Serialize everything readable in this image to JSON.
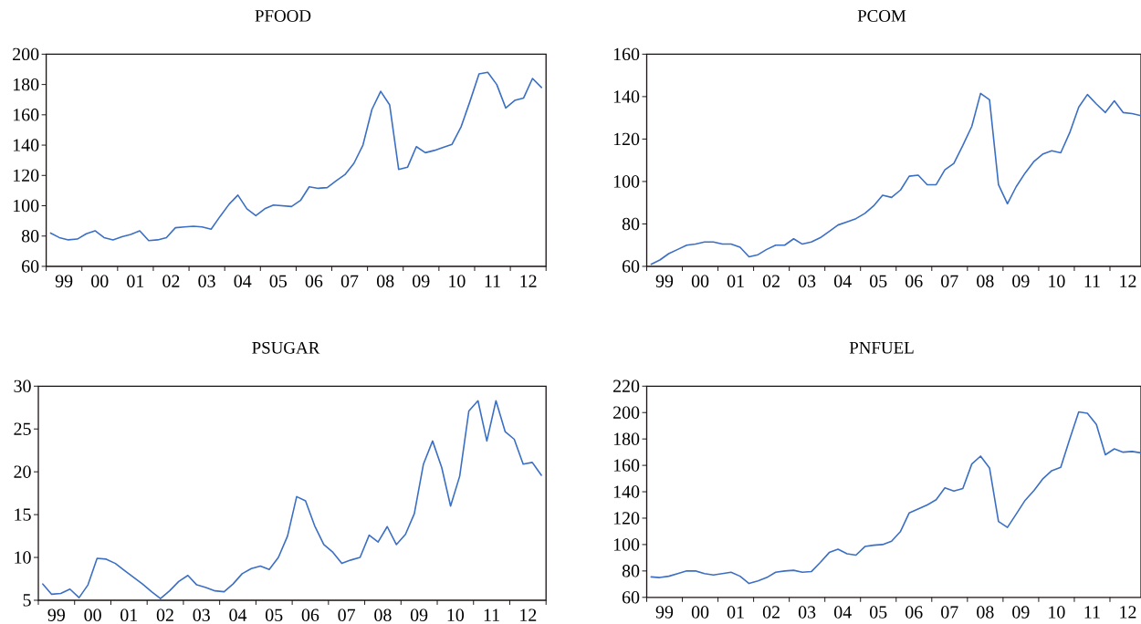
{
  "chart_data": [
    {
      "type": "line",
      "title": "PFOOD",
      "color": "#3b6fc4",
      "x": [
        "1999-02-15",
        "1999-05-15",
        "1999-08-15",
        "1999-11-15",
        "2000-02-15",
        "2000-05-15",
        "2000-08-15",
        "2000-11-15",
        "2001-02-15",
        "2001-05-15",
        "2001-08-15",
        "2001-11-15",
        "2002-02-15",
        "2002-05-15",
        "2002-08-15",
        "2002-11-15",
        "2003-02-15",
        "2003-05-15",
        "2003-08-15",
        "2003-11-15",
        "2004-02-15",
        "2004-05-15",
        "2004-08-15",
        "2004-11-15",
        "2005-02-15",
        "2005-05-15",
        "2005-08-15",
        "2005-11-15",
        "2006-02-15",
        "2006-05-15",
        "2006-08-15",
        "2006-11-15",
        "2007-02-15",
        "2007-05-15",
        "2007-08-15",
        "2007-11-15",
        "2008-02-15",
        "2008-05-15",
        "2008-08-15",
        "2008-11-15",
        "2009-02-15",
        "2009-05-15",
        "2009-08-15",
        "2009-11-15",
        "2010-02-15",
        "2010-05-15",
        "2010-08-15",
        "2010-11-15",
        "2011-02-15",
        "2011-05-15",
        "2011-08-15",
        "2011-11-15",
        "2012-02-15",
        "2012-05-15",
        "2012-08-15",
        "2012-11-15"
      ],
      "values": [
        82,
        79,
        77.5,
        78,
        81.5,
        83.5,
        79,
        77.5,
        79.5,
        81,
        83.5,
        77,
        77.5,
        79,
        85.5,
        86,
        86.5,
        86,
        84.5,
        93,
        101,
        107,
        98,
        93.5,
        98,
        100.5,
        100,
        99.5,
        103.5,
        112.5,
        111.5,
        112,
        116.5,
        120.5,
        128,
        140,
        163.5,
        175.5,
        166.5,
        124,
        125.5,
        139,
        135,
        136.5,
        138.5,
        140.5,
        152,
        169,
        187,
        188,
        180,
        164.5,
        169.5,
        171,
        184,
        178
      ],
      "xlim": [
        "1999-01-01",
        "2013-01-01"
      ],
      "ylim": [
        60,
        200
      ],
      "xticks": [
        {
          "value": "1999-01-01",
          "label": null
        },
        {
          "value": "1999-07-02",
          "label": "99"
        },
        {
          "value": "2000-01-01",
          "label": null
        },
        {
          "value": "2000-07-02",
          "label": "00"
        },
        {
          "value": "2001-01-01",
          "label": null
        },
        {
          "value": "2001-07-02",
          "label": "01"
        },
        {
          "value": "2002-01-01",
          "label": null
        },
        {
          "value": "2002-07-02",
          "label": "02"
        },
        {
          "value": "2003-01-01",
          "label": null
        },
        {
          "value": "2003-07-02",
          "label": "03"
        },
        {
          "value": "2004-01-01",
          "label": null
        },
        {
          "value": "2004-07-02",
          "label": "04"
        },
        {
          "value": "2005-01-01",
          "label": null
        },
        {
          "value": "2005-07-02",
          "label": "05"
        },
        {
          "value": "2006-01-01",
          "label": null
        },
        {
          "value": "2006-07-02",
          "label": "06"
        },
        {
          "value": "2007-01-01",
          "label": null
        },
        {
          "value": "2007-07-02",
          "label": "07"
        },
        {
          "value": "2008-01-01",
          "label": null
        },
        {
          "value": "2008-07-02",
          "label": "08"
        },
        {
          "value": "2009-01-01",
          "label": null
        },
        {
          "value": "2009-07-02",
          "label": "09"
        },
        {
          "value": "2010-01-01",
          "label": null
        },
        {
          "value": "2010-07-02",
          "label": "10"
        },
        {
          "value": "2011-01-01",
          "label": null
        },
        {
          "value": "2011-07-02",
          "label": "11"
        },
        {
          "value": "2012-01-01",
          "label": null
        },
        {
          "value": "2012-07-02",
          "label": "12"
        },
        {
          "value": "2013-01-01",
          "label": null
        }
      ],
      "yticks": [
        60,
        80,
        100,
        120,
        140,
        160,
        180,
        200
      ]
    },
    {
      "type": "line",
      "title": "PCOM",
      "color": "#3b6fc4",
      "x": [
        "1999-02-15",
        "1999-05-15",
        "1999-08-15",
        "1999-11-15",
        "2000-02-15",
        "2000-05-15",
        "2000-08-15",
        "2000-11-15",
        "2001-02-15",
        "2001-05-15",
        "2001-08-15",
        "2001-11-15",
        "2002-02-15",
        "2002-05-15",
        "2002-08-15",
        "2002-11-15",
        "2003-02-15",
        "2003-05-15",
        "2003-08-15",
        "2003-11-15",
        "2004-02-15",
        "2004-05-15",
        "2004-08-15",
        "2004-11-15",
        "2005-02-15",
        "2005-05-15",
        "2005-08-15",
        "2005-11-15",
        "2006-02-15",
        "2006-05-15",
        "2006-08-15",
        "2006-11-15",
        "2007-02-15",
        "2007-05-15",
        "2007-08-15",
        "2007-11-15",
        "2008-02-15",
        "2008-05-15",
        "2008-08-15",
        "2008-11-15",
        "2009-02-15",
        "2009-05-15",
        "2009-08-15",
        "2009-11-15",
        "2010-02-15",
        "2010-05-15",
        "2010-08-15",
        "2010-11-15",
        "2011-02-15",
        "2011-05-15",
        "2011-08-15",
        "2011-11-15",
        "2012-02-15",
        "2012-05-15",
        "2012-08-15",
        "2012-11-15"
      ],
      "values": [
        61,
        63,
        66,
        68,
        70,
        70.5,
        71.5,
        71.5,
        70.5,
        70.5,
        69,
        64.5,
        65.5,
        68,
        70,
        70,
        73,
        70.5,
        71.5,
        73.5,
        76.5,
        79.5,
        81,
        82.5,
        85,
        88.5,
        93.5,
        92.5,
        96,
        102.5,
        103,
        98.5,
        98.5,
        105.5,
        108.5,
        117,
        126,
        141.5,
        138.5,
        98.5,
        89.5,
        97.5,
        104,
        109.5,
        113,
        114.5,
        113.5,
        123,
        135,
        141,
        136.5,
        132.5,
        138,
        132.5,
        132,
        131
      ],
      "xlim": [
        "1999-01-01",
        "2012-11-15"
      ],
      "ylim": [
        60,
        160
      ],
      "xticks": [
        {
          "value": "1999-01-01",
          "label": null
        },
        {
          "value": "1999-07-02",
          "label": "99"
        },
        {
          "value": "2000-01-01",
          "label": null
        },
        {
          "value": "2000-07-02",
          "label": "00"
        },
        {
          "value": "2001-01-01",
          "label": null
        },
        {
          "value": "2001-07-02",
          "label": "01"
        },
        {
          "value": "2002-01-01",
          "label": null
        },
        {
          "value": "2002-07-02",
          "label": "02"
        },
        {
          "value": "2003-01-01",
          "label": null
        },
        {
          "value": "2003-07-02",
          "label": "03"
        },
        {
          "value": "2004-01-01",
          "label": null
        },
        {
          "value": "2004-07-02",
          "label": "04"
        },
        {
          "value": "2005-01-01",
          "label": null
        },
        {
          "value": "2005-07-02",
          "label": "05"
        },
        {
          "value": "2006-01-01",
          "label": null
        },
        {
          "value": "2006-07-02",
          "label": "06"
        },
        {
          "value": "2007-01-01",
          "label": null
        },
        {
          "value": "2007-07-02",
          "label": "07"
        },
        {
          "value": "2008-01-01",
          "label": null
        },
        {
          "value": "2008-07-02",
          "label": "08"
        },
        {
          "value": "2009-01-01",
          "label": null
        },
        {
          "value": "2009-07-02",
          "label": "09"
        },
        {
          "value": "2010-01-01",
          "label": null
        },
        {
          "value": "2010-07-02",
          "label": "10"
        },
        {
          "value": "2011-01-01",
          "label": null
        },
        {
          "value": "2011-07-02",
          "label": "11"
        },
        {
          "value": "2012-01-01",
          "label": null
        },
        {
          "value": "2012-07-02",
          "label": "12"
        }
      ],
      "yticks": [
        60,
        80,
        100,
        120,
        140,
        160
      ]
    },
    {
      "type": "line",
      "title": "PSUGAR",
      "color": "#3b6fc4",
      "x": [
        "1999-02-15",
        "1999-05-15",
        "1999-08-15",
        "1999-11-15",
        "2000-02-15",
        "2000-05-15",
        "2000-08-15",
        "2000-11-15",
        "2001-02-15",
        "2001-05-15",
        "2001-08-15",
        "2001-11-15",
        "2002-02-15",
        "2002-05-15",
        "2002-08-15",
        "2002-11-15",
        "2003-02-15",
        "2003-05-15",
        "2003-08-15",
        "2003-11-15",
        "2004-02-15",
        "2004-05-15",
        "2004-08-15",
        "2004-11-15",
        "2005-02-15",
        "2005-05-15",
        "2005-08-15",
        "2005-11-15",
        "2006-02-15",
        "2006-05-15",
        "2006-08-15",
        "2006-11-15",
        "2007-02-15",
        "2007-05-15",
        "2007-08-15",
        "2007-11-15",
        "2008-02-15",
        "2008-05-15",
        "2008-08-15",
        "2008-11-15",
        "2009-02-15",
        "2009-05-15",
        "2009-08-15",
        "2009-11-15",
        "2010-02-15",
        "2010-05-15",
        "2010-08-15",
        "2010-11-15",
        "2011-02-15",
        "2011-05-15",
        "2011-08-15",
        "2011-11-15",
        "2012-02-15",
        "2012-05-15",
        "2012-08-15",
        "2012-11-15"
      ],
      "values": [
        6.9,
        5.7,
        5.8,
        6.3,
        5.3,
        6.8,
        9.9,
        9.8,
        9.3,
        8.5,
        7.7,
        6.9,
        6.0,
        5.2,
        6.1,
        7.2,
        7.9,
        6.8,
        6.5,
        6.1,
        6.0,
        6.9,
        8.1,
        8.7,
        9.0,
        8.6,
        10,
        12.5,
        17.1,
        16.6,
        13.7,
        11.5,
        10.6,
        9.3,
        9.7,
        10,
        12.6,
        11.8,
        13.6,
        11.5,
        12.7,
        15.1,
        20.9,
        23.6,
        20.5,
        16,
        19.5,
        27.1,
        28.3,
        23.6,
        28.3,
        24.7,
        23.8,
        20.9,
        21.1,
        19.6
      ],
      "xlim": [
        "1999-01-01",
        "2013-01-01"
      ],
      "ylim": [
        5,
        30
      ],
      "xticks": [
        {
          "value": "1999-01-01",
          "label": null
        },
        {
          "value": "1999-07-02",
          "label": "99"
        },
        {
          "value": "2000-01-01",
          "label": null
        },
        {
          "value": "2000-07-02",
          "label": "00"
        },
        {
          "value": "2001-01-01",
          "label": null
        },
        {
          "value": "2001-07-02",
          "label": "01"
        },
        {
          "value": "2002-01-01",
          "label": null
        },
        {
          "value": "2002-07-02",
          "label": "02"
        },
        {
          "value": "2003-01-01",
          "label": null
        },
        {
          "value": "2003-07-02",
          "label": "03"
        },
        {
          "value": "2004-01-01",
          "label": null
        },
        {
          "value": "2004-07-02",
          "label": "04"
        },
        {
          "value": "2005-01-01",
          "label": null
        },
        {
          "value": "2005-07-02",
          "label": "05"
        },
        {
          "value": "2006-01-01",
          "label": null
        },
        {
          "value": "2006-07-02",
          "label": "06"
        },
        {
          "value": "2007-01-01",
          "label": null
        },
        {
          "value": "2007-07-02",
          "label": "07"
        },
        {
          "value": "2008-01-01",
          "label": null
        },
        {
          "value": "2008-07-02",
          "label": "08"
        },
        {
          "value": "2009-01-01",
          "label": null
        },
        {
          "value": "2009-07-02",
          "label": "09"
        },
        {
          "value": "2010-01-01",
          "label": null
        },
        {
          "value": "2010-07-02",
          "label": "10"
        },
        {
          "value": "2011-01-01",
          "label": null
        },
        {
          "value": "2011-07-02",
          "label": "11"
        },
        {
          "value": "2012-01-01",
          "label": null
        },
        {
          "value": "2012-07-02",
          "label": "12"
        },
        {
          "value": "2013-01-01",
          "label": null
        }
      ],
      "yticks": [
        5,
        10,
        15,
        20,
        25,
        30
      ]
    },
    {
      "type": "line",
      "title": "PNFUEL",
      "color": "#3b6fc4",
      "x": [
        "1999-02-15",
        "1999-05-15",
        "1999-08-15",
        "1999-11-15",
        "2000-02-15",
        "2000-05-15",
        "2000-08-15",
        "2000-11-15",
        "2001-02-15",
        "2001-05-15",
        "2001-08-15",
        "2001-11-15",
        "2002-02-15",
        "2002-05-15",
        "2002-08-15",
        "2002-11-15",
        "2003-02-15",
        "2003-05-15",
        "2003-08-15",
        "2003-11-15",
        "2004-02-15",
        "2004-05-15",
        "2004-08-15",
        "2004-11-15",
        "2005-02-15",
        "2005-05-15",
        "2005-08-15",
        "2005-11-15",
        "2006-02-15",
        "2006-05-15",
        "2006-08-15",
        "2006-11-15",
        "2007-02-15",
        "2007-05-15",
        "2007-08-15",
        "2007-11-15",
        "2008-02-15",
        "2008-05-15",
        "2008-08-15",
        "2008-11-15",
        "2009-02-15",
        "2009-05-15",
        "2009-08-15",
        "2009-11-15",
        "2010-02-15",
        "2010-05-15",
        "2010-08-15",
        "2010-11-15",
        "2011-02-15",
        "2011-05-15",
        "2011-08-15",
        "2011-11-15",
        "2012-02-15",
        "2012-05-15",
        "2012-08-15",
        "2012-11-15"
      ],
      "values": [
        75.5,
        75,
        76,
        78,
        80,
        80,
        78,
        77,
        78,
        79,
        76,
        70.5,
        72.5,
        75,
        79,
        80,
        80.5,
        79,
        79.5,
        86.5,
        94,
        96.5,
        93,
        92,
        98.5,
        99.5,
        100,
        102.5,
        110,
        124,
        127,
        130,
        134,
        143,
        140.5,
        142.5,
        161,
        167,
        158,
        117.5,
        113,
        123,
        133.5,
        141,
        150,
        156,
        158.5,
        180,
        200.5,
        199.5,
        191,
        168,
        172.5,
        170,
        170.5,
        169.5
      ],
      "xlim": [
        "1999-01-01",
        "2012-11-15"
      ],
      "ylim": [
        60,
        220
      ],
      "xticks": [
        {
          "value": "1999-01-01",
          "label": null
        },
        {
          "value": "1999-07-02",
          "label": "99"
        },
        {
          "value": "2000-01-01",
          "label": null
        },
        {
          "value": "2000-07-02",
          "label": "00"
        },
        {
          "value": "2001-01-01",
          "label": null
        },
        {
          "value": "2001-07-02",
          "label": "01"
        },
        {
          "value": "2002-01-01",
          "label": null
        },
        {
          "value": "2002-07-02",
          "label": "02"
        },
        {
          "value": "2003-01-01",
          "label": null
        },
        {
          "value": "2003-07-02",
          "label": "03"
        },
        {
          "value": "2004-01-01",
          "label": null
        },
        {
          "value": "2004-07-02",
          "label": "04"
        },
        {
          "value": "2005-01-01",
          "label": null
        },
        {
          "value": "2005-07-02",
          "label": "05"
        },
        {
          "value": "2006-01-01",
          "label": null
        },
        {
          "value": "2006-07-02",
          "label": "06"
        },
        {
          "value": "2007-01-01",
          "label": null
        },
        {
          "value": "2007-07-02",
          "label": "07"
        },
        {
          "value": "2008-01-01",
          "label": null
        },
        {
          "value": "2008-07-02",
          "label": "08"
        },
        {
          "value": "2009-01-01",
          "label": null
        },
        {
          "value": "2009-07-02",
          "label": "09"
        },
        {
          "value": "2010-01-01",
          "label": null
        },
        {
          "value": "2010-07-02",
          "label": "10"
        },
        {
          "value": "2011-01-01",
          "label": null
        },
        {
          "value": "2011-07-02",
          "label": "11"
        },
        {
          "value": "2012-01-01",
          "label": null
        },
        {
          "value": "2012-07-02",
          "label": "12"
        }
      ],
      "yticks": [
        60,
        80,
        100,
        120,
        140,
        160,
        180,
        200,
        220
      ]
    }
  ]
}
